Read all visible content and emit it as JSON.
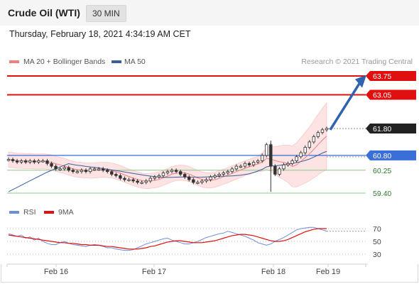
{
  "header": {
    "title": "Crude Oil (WTI)",
    "timeframe": "30 MIN"
  },
  "timestamp": "Thursday, February 18, 2021 4:34:19 AM CET",
  "legend": {
    "ma20_label": "MA 20 + Bollinger Bands",
    "ma50_label": "MA 50",
    "credit": "Research © 2021 Trading Central",
    "ma20_color": "#f08080",
    "ma50_color": "#3a5f99"
  },
  "colors": {
    "resistance": "#e01010",
    "support_blue": "#3a6fd8",
    "support_green": "#8cc98c",
    "current": "#222222",
    "arrow": "#2e63b0",
    "rsi": "#6b8fd8",
    "rsi_ma": "#e01010",
    "bollinger_fill": "#fde3e3"
  },
  "price_levels": [
    {
      "value": "63.75",
      "type": "resistance"
    },
    {
      "value": "63.05",
      "type": "resistance"
    },
    {
      "value": "61.80",
      "type": "current"
    },
    {
      "value": "60.80",
      "type": "support_blue"
    },
    {
      "value": "60.25",
      "type": "support_green"
    },
    {
      "value": "59.40",
      "type": "support_green"
    }
  ],
  "rsi_panel": {
    "rsi_label": "RSI",
    "ma_label": "9MA",
    "levels": [
      "70",
      "50",
      "30"
    ]
  },
  "x_axis": {
    "labels": [
      "Feb 16",
      "Feb 17",
      "Feb 18",
      "Feb 19"
    ]
  },
  "chart_data": {
    "type": "candlestick",
    "price_range": [
      59.2,
      64.1
    ],
    "closes": [
      60.65,
      60.6,
      60.55,
      60.6,
      60.55,
      60.6,
      60.55,
      60.6,
      60.6,
      60.5,
      60.4,
      60.3,
      60.3,
      60.35,
      60.25,
      60.2,
      60.2,
      60.25,
      60.2,
      60.3,
      60.3,
      60.3,
      60.25,
      60.2,
      60.1,
      60.05,
      59.95,
      59.9,
      59.9,
      59.85,
      59.8,
      59.8,
      59.85,
      59.95,
      60.0,
      60.05,
      60.15,
      60.2,
      60.25,
      60.2,
      60.1,
      60.0,
      59.9,
      59.8,
      59.8,
      59.85,
      59.9,
      60.0,
      60.05,
      60.1,
      60.15,
      60.2,
      60.3,
      60.4,
      60.4,
      60.5,
      60.45,
      60.55,
      60.6,
      60.8,
      61.2,
      60.4,
      60.1,
      60.3,
      60.45,
      60.5,
      60.6,
      60.75,
      60.9,
      61.1,
      61.3,
      61.5,
      61.65,
      61.75,
      61.8
    ],
    "rsi": [
      62,
      60,
      58,
      60,
      55,
      57,
      52,
      55,
      50,
      47,
      45,
      45,
      48,
      50,
      47,
      45,
      44,
      43,
      42,
      44,
      45,
      44,
      42,
      40,
      40,
      38,
      37,
      36,
      36,
      37,
      40,
      43,
      46,
      48,
      50,
      52,
      54,
      55,
      52,
      50,
      48,
      46,
      46,
      48,
      50,
      53,
      56,
      58,
      60,
      62,
      63,
      66,
      64,
      62,
      60,
      58,
      55,
      52,
      48,
      46,
      44,
      46,
      50,
      53,
      56,
      60,
      64,
      68,
      70,
      71,
      72,
      72,
      70,
      68,
      66
    ],
    "rsi_ma": [
      60,
      59,
      58,
      57,
      56,
      55,
      54,
      53,
      52,
      51,
      50,
      49,
      48,
      48,
      47,
      47,
      46,
      45,
      45,
      44,
      44,
      44,
      43,
      42,
      42,
      41,
      40,
      39,
      38,
      38,
      38,
      39,
      40,
      42,
      43,
      45,
      47,
      49,
      50,
      51,
      51,
      50,
      49,
      48,
      48,
      48,
      49,
      50,
      51,
      53,
      55,
      57,
      59,
      60,
      61,
      61,
      60,
      59,
      57,
      55,
      53,
      51,
      50,
      50,
      51,
      53,
      56,
      59,
      62,
      65,
      67,
      69,
      70,
      70,
      70
    ]
  }
}
